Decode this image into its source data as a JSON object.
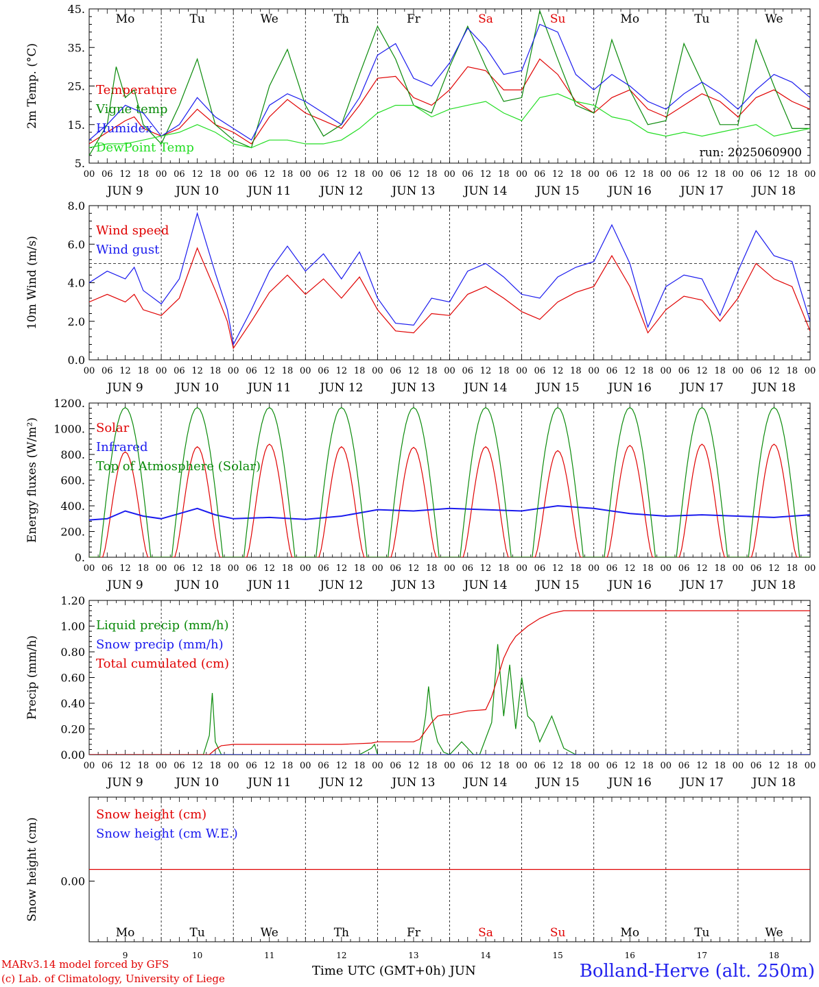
{
  "run_label": "run: 2025060900",
  "hour_ticks": [
    "00",
    "06",
    "12",
    "18"
  ],
  "date_labels": [
    "JUN  9",
    "JUN 10",
    "JUN 11",
    "JUN 12",
    "JUN 13",
    "JUN 14",
    "JUN 15",
    "JUN 16",
    "JUN 17",
    "JUN 18"
  ],
  "weekdays_top": [
    "Mo",
    "Tu",
    "We",
    "Th",
    "Fr",
    "Sa",
    "Su",
    "Mo",
    "Tu",
    "We"
  ],
  "weekdays_bottom": [
    "Mo",
    "Tu",
    "We",
    "Th",
    "Fr",
    "Sa",
    "Su",
    "Mo",
    "Tu",
    "We"
  ],
  "weekend_indices": [
    5,
    6
  ],
  "day_numbers": [
    "9",
    "10",
    "11",
    "12",
    "13",
    "14",
    "15",
    "16",
    "17",
    "18"
  ],
  "footer": {
    "model": "MARv3.14 model forced by GFS",
    "lab": "(c) Lab. of Climatology, University of Liege",
    "time_axis": "Time UTC (GMT+0h) JUN",
    "station": "Bolland-Herve (alt. 250m)"
  },
  "colors": {
    "red": "#e00000",
    "green": "#0a8a0a",
    "blue": "#1a1aee",
    "lightgreen": "#22dd22",
    "weekend": "#e00000"
  },
  "chart_data": [
    {
      "type": "line",
      "ylabel": "2m Temp. (°C)",
      "ylim": [
        5,
        45
      ],
      "yticks": [
        5,
        15,
        25,
        35,
        45
      ],
      "ytick_labels": [
        "5.",
        "15.",
        "25.",
        "35.",
        "45."
      ],
      "x_range_hours": [
        0,
        240
      ],
      "series": [
        {
          "name": "Temperature",
          "color": "red",
          "x": [
            0,
            6,
            12,
            15,
            18,
            24,
            30,
            36,
            42,
            48,
            54,
            60,
            66,
            72,
            78,
            84,
            90,
            96,
            102,
            108,
            114,
            120,
            126,
            132,
            138,
            144,
            150,
            156,
            162,
            168,
            174,
            180,
            186,
            192,
            198,
            204,
            210,
            216,
            222,
            228,
            234,
            240
          ],
          "y": [
            10,
            13,
            16,
            17,
            14,
            12,
            14,
            19,
            15,
            13,
            10,
            17,
            21.5,
            18,
            16,
            14,
            20,
            27,
            27.5,
            22,
            20,
            24,
            30,
            29,
            24,
            24,
            32,
            28,
            21,
            18,
            22,
            24,
            19,
            17,
            20,
            23,
            21,
            17,
            22,
            24,
            21,
            19
          ]
        },
        {
          "name": "Vigne temp",
          "color": "green",
          "x": [
            0,
            6,
            9,
            12,
            15,
            18,
            24,
            30,
            36,
            42,
            48,
            54,
            60,
            66,
            72,
            78,
            84,
            90,
            96,
            102,
            108,
            114,
            120,
            126,
            132,
            138,
            144,
            150,
            156,
            162,
            168,
            174,
            180,
            186,
            192,
            198,
            204,
            210,
            216,
            222,
            228,
            234,
            240
          ],
          "y": [
            7,
            15,
            30,
            22,
            24,
            15,
            10,
            20,
            32,
            15,
            11,
            9,
            25,
            34.5,
            20,
            12,
            15,
            28,
            40.5,
            32,
            20,
            18,
            30,
            40.5,
            30,
            21,
            22,
            44.5,
            32,
            20,
            18,
            37,
            24,
            15,
            16,
            36,
            26,
            15,
            15,
            37,
            25,
            14,
            14
          ]
        },
        {
          "name": "Humidex",
          "color": "blue",
          "x": [
            0,
            6,
            12,
            18,
            24,
            30,
            36,
            42,
            48,
            54,
            60,
            66,
            72,
            78,
            84,
            90,
            96,
            102,
            108,
            114,
            120,
            126,
            132,
            138,
            144,
            150,
            156,
            162,
            168,
            174,
            180,
            186,
            192,
            198,
            204,
            210,
            216,
            222,
            228,
            234,
            240
          ],
          "y": [
            11,
            15,
            20,
            18,
            12,
            15,
            22,
            17,
            14,
            11,
            20,
            23,
            21,
            18,
            15,
            22,
            33,
            36,
            27,
            25,
            31,
            40,
            35,
            28,
            29,
            41,
            39,
            28,
            24,
            28,
            25,
            21,
            19,
            23,
            26,
            23,
            19,
            24,
            28,
            26,
            22
          ]
        },
        {
          "name": "DewPoint Temp",
          "color": "lightgreen",
          "x": [
            0,
            6,
            12,
            18,
            24,
            30,
            36,
            42,
            48,
            54,
            60,
            66,
            72,
            78,
            84,
            90,
            96,
            102,
            108,
            114,
            120,
            126,
            132,
            138,
            144,
            150,
            156,
            162,
            168,
            174,
            180,
            186,
            192,
            198,
            204,
            210,
            216,
            222,
            228,
            234,
            240
          ],
          "y": [
            9,
            10,
            10,
            11,
            12,
            13,
            15,
            13,
            10,
            9,
            11,
            11,
            10,
            10,
            11,
            14,
            18,
            20,
            20,
            17,
            19,
            20,
            21,
            18,
            16,
            22,
            23,
            21,
            20,
            17,
            16,
            13,
            12,
            13,
            12,
            13,
            14,
            15,
            12,
            13,
            14
          ]
        }
      ]
    },
    {
      "type": "line",
      "ylabel": "10m Wind (m/s)",
      "ylim": [
        0,
        8
      ],
      "yticks": [
        0,
        2,
        4,
        6,
        8
      ],
      "ytick_labels": [
        "0.0",
        "2.0",
        "4.0",
        "6.0",
        "8.0"
      ],
      "hline": 5,
      "x_range_hours": [
        0,
        240
      ],
      "series": [
        {
          "name": "Wind speed",
          "color": "red",
          "x": [
            0,
            6,
            12,
            15,
            18,
            24,
            30,
            36,
            42,
            46,
            48,
            54,
            60,
            66,
            72,
            78,
            84,
            90,
            96,
            102,
            108,
            114,
            120,
            126,
            132,
            138,
            144,
            150,
            156,
            162,
            168,
            174,
            180,
            186,
            192,
            198,
            204,
            210,
            216,
            222,
            228,
            234,
            240
          ],
          "y": [
            3,
            3.4,
            3,
            3.4,
            2.6,
            2.3,
            3.2,
            5.8,
            3.6,
            2,
            0.6,
            2,
            3.5,
            4.4,
            3.4,
            4.2,
            3.2,
            4.3,
            2.6,
            1.5,
            1.4,
            2.4,
            2.3,
            3.4,
            3.8,
            3.2,
            2.5,
            2.1,
            3.0,
            3.5,
            3.8,
            5.4,
            3.8,
            1.4,
            2.6,
            3.3,
            3.1,
            2.0,
            3.2,
            5.0,
            4.2,
            3.8,
            1.5
          ]
        },
        {
          "name": "Wind gust",
          "color": "blue",
          "x": [
            0,
            6,
            12,
            15,
            18,
            24,
            30,
            36,
            42,
            46,
            48,
            54,
            60,
            66,
            72,
            78,
            84,
            90,
            96,
            102,
            108,
            114,
            120,
            126,
            132,
            138,
            144,
            150,
            156,
            162,
            168,
            174,
            180,
            186,
            192,
            198,
            204,
            210,
            216,
            222,
            228,
            234,
            240
          ],
          "y": [
            4,
            4.6,
            4.2,
            4.8,
            3.6,
            2.9,
            4.2,
            7.6,
            4.5,
            2.6,
            0.8,
            2.6,
            4.6,
            5.9,
            4.6,
            5.5,
            4.2,
            5.6,
            3.2,
            1.9,
            1.8,
            3.2,
            3.0,
            4.6,
            5.0,
            4.3,
            3.4,
            3.2,
            4.3,
            4.8,
            5.1,
            7.0,
            5.0,
            1.7,
            3.8,
            4.4,
            4.2,
            2.3,
            4.6,
            6.7,
            5.4,
            5.1,
            2.0
          ]
        }
      ]
    },
    {
      "type": "line",
      "ylabel": "Energy fluxes (W/m²)",
      "ylim": [
        0,
        1200
      ],
      "yticks": [
        0,
        200,
        400,
        600,
        800,
        1000,
        1200
      ],
      "ytick_labels": [
        "0.",
        "200.",
        "400.",
        "600.",
        "800.",
        "1000.",
        "1200."
      ],
      "x_range_hours": [
        0,
        240
      ],
      "daily_solar_peak": [
        820,
        860,
        880,
        860,
        855,
        860,
        830,
        870,
        880,
        880
      ],
      "daily_toa_peak": [
        1165,
        1165,
        1165,
        1165,
        1165,
        1165,
        1165,
        1165,
        1165,
        1165
      ],
      "series": [
        {
          "name": "Solar",
          "color": "red"
        },
        {
          "name": "Infrared",
          "color": "blue",
          "x": [
            0,
            6,
            12,
            18,
            24,
            30,
            36,
            42,
            48,
            60,
            72,
            84,
            96,
            108,
            120,
            132,
            144,
            156,
            168,
            180,
            192,
            204,
            216,
            228,
            240
          ],
          "y": [
            290,
            300,
            360,
            320,
            300,
            340,
            380,
            330,
            300,
            310,
            295,
            320,
            370,
            360,
            380,
            370,
            360,
            400,
            380,
            340,
            320,
            330,
            320,
            310,
            330
          ]
        },
        {
          "name": "Top of Atmosphere (Solar)",
          "color": "green"
        }
      ]
    },
    {
      "type": "line",
      "ylabel": "Precip (mm/h)",
      "ylim": [
        0,
        1.2
      ],
      "yticks": [
        0,
        0.2,
        0.4,
        0.6,
        0.8,
        1.0,
        1.2
      ],
      "ytick_labels": [
        "0.00",
        "0.20",
        "0.40",
        "0.60",
        "0.80",
        "1.00",
        "1.20"
      ],
      "x_range_hours": [
        0,
        240
      ],
      "series": [
        {
          "name": "Liquid precip (mm/h)",
          "color": "green",
          "x": [
            0,
            38,
            40,
            41,
            42,
            44,
            46,
            90,
            94,
            95,
            96,
            110,
            112,
            113,
            114,
            116,
            118,
            120,
            122,
            124,
            126,
            128,
            130,
            134,
            136,
            138,
            140,
            142,
            144,
            146,
            148,
            150,
            154,
            158,
            162,
            240
          ],
          "y": [
            0,
            0,
            0.15,
            0.48,
            0.1,
            0,
            0,
            0,
            0.05,
            0.08,
            0,
            0,
            0.3,
            0.53,
            0.3,
            0.1,
            0.02,
            0,
            0.05,
            0.1,
            0.05,
            0,
            0,
            0.25,
            0.86,
            0.3,
            0.7,
            0.2,
            0.6,
            0.3,
            0.25,
            0.1,
            0.3,
            0.05,
            0,
            0
          ]
        },
        {
          "name": "Snow precip (mm/h)",
          "color": "blue",
          "x": [
            0,
            240
          ],
          "y": [
            0,
            0
          ]
        },
        {
          "name": "Total cumulated (cm)",
          "color": "red",
          "x": [
            0,
            40,
            42,
            44,
            48,
            60,
            72,
            84,
            94,
            96,
            108,
            110,
            114,
            116,
            118,
            120,
            126,
            132,
            134,
            136,
            138,
            140,
            142,
            146,
            150,
            154,
            158,
            162,
            240
          ],
          "y": [
            0,
            0,
            0.04,
            0.07,
            0.08,
            0.08,
            0.08,
            0.08,
            0.09,
            0.1,
            0.1,
            0.12,
            0.25,
            0.3,
            0.31,
            0.31,
            0.34,
            0.35,
            0.45,
            0.6,
            0.75,
            0.85,
            0.92,
            1.0,
            1.06,
            1.1,
            1.12,
            1.12,
            1.12
          ]
        }
      ]
    },
    {
      "type": "line",
      "ylabel": "Snow height (cm)",
      "ytick_labels": [
        "0.00"
      ],
      "x_range_hours": [
        0,
        240
      ],
      "series": [
        {
          "name": "Snow height (cm)",
          "color": "red",
          "x": [
            0,
            240
          ],
          "y": [
            0,
            0
          ]
        },
        {
          "name": "Snow height (cm W.E.)",
          "color": "blue"
        }
      ]
    }
  ]
}
